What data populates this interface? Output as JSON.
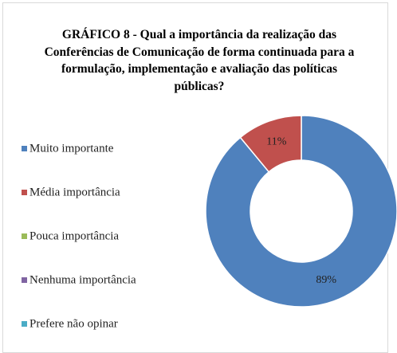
{
  "chart_data": {
    "type": "donut",
    "title": "GRÁFICO 8 - Qual a importância da realização das Conferências de Comunicação de forma continuada para a formulação, implementação e avaliação das políticas públicas?",
    "categories": [
      "Muito importante",
      "Média importância",
      "Pouca importância",
      "Nenhuma importância",
      "Prefere não opinar"
    ],
    "values": [
      89,
      11,
      0,
      0,
      0
    ],
    "value_labels": [
      "89%",
      "11%",
      null,
      null,
      null
    ],
    "colors": [
      "#4f81bd",
      "#c0504d",
      "#9bbb59",
      "#8064a2",
      "#4bacc6"
    ],
    "legend": "left"
  }
}
